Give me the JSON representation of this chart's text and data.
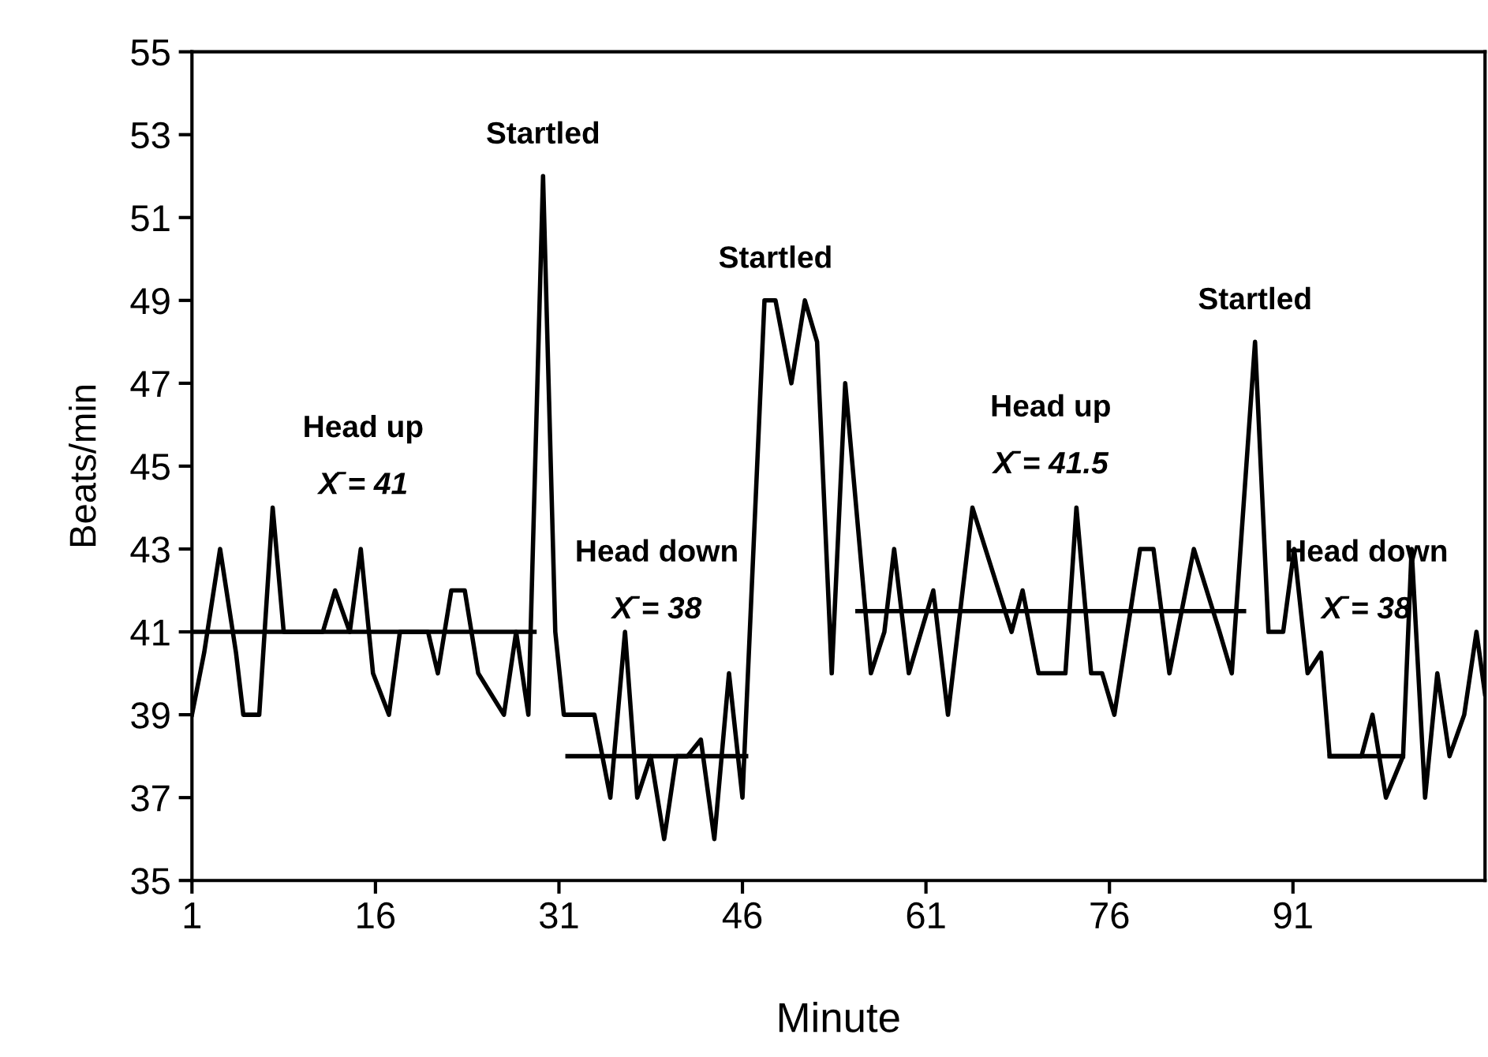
{
  "chart_data": {
    "type": "line",
    "xlabel": "Minute",
    "ylabel": "Beats/min",
    "xlim": [
      1,
      106.7
    ],
    "xticks": [
      1,
      16,
      31,
      46,
      61,
      76,
      91
    ],
    "ylim": [
      35,
      55
    ],
    "yticks": [
      35,
      37,
      39,
      41,
      43,
      45,
      47,
      49,
      51,
      53,
      55
    ],
    "grid": false,
    "marker": "none",
    "line_style": "solid",
    "series": [
      {
        "color": "#000000",
        "x": [
          1,
          2,
          3.3,
          4.6,
          5.2,
          6.5,
          7.6,
          8.5,
          11.7,
          12.7,
          13.9,
          14.8,
          15.8,
          17.1,
          18,
          20.3,
          21.1,
          22.2,
          23.3,
          24.4,
          26.5,
          27.5,
          28.5,
          29.7,
          30.7,
          31.4,
          33.9,
          35.2,
          36.4,
          37.4,
          38.5,
          39.6,
          40.6,
          41.5,
          42.6,
          43.7,
          44.9,
          46,
          47.8,
          48.7,
          50,
          51.1,
          52.1,
          53.3,
          54.4,
          56.5,
          57.6,
          58.4,
          59.6,
          61.6,
          62.8,
          64.8,
          68,
          68.9,
          70.2,
          72.4,
          73.3,
          74.5,
          75.4,
          76.4,
          78.5,
          79.6,
          80.9,
          82.9,
          85,
          86,
          87.9,
          89,
          90.2,
          91.1,
          92.2,
          93.3,
          94,
          96.6,
          97.5,
          98.6,
          100,
          100.7,
          101.8,
          102.8,
          103.8,
          105,
          106,
          106.7
        ],
        "values": [
          39,
          40.5,
          43,
          40.5,
          39,
          39,
          44,
          41,
          41,
          42,
          41,
          43,
          40,
          39,
          41,
          41,
          40,
          42,
          42,
          40,
          39,
          41,
          39,
          52,
          41,
          39,
          39,
          37,
          41,
          37,
          38,
          36,
          38,
          38,
          38.4,
          36,
          40,
          37,
          49,
          49,
          47,
          49,
          48,
          40,
          47,
          40,
          41,
          43,
          40,
          42,
          39,
          44,
          41,
          42,
          40,
          40,
          44,
          40,
          40,
          39,
          43,
          43,
          40,
          43,
          41,
          40,
          48,
          41,
          41,
          43,
          40,
          40.5,
          38,
          38,
          39,
          37,
          38,
          43,
          37,
          40,
          38,
          39,
          41,
          39.5
        ]
      },
      {
        "color": "#000000",
        "x": [
          1,
          29
        ],
        "values": [
          41,
          41
        ]
      },
      {
        "color": "#000000",
        "x": [
          31.7,
          46.3
        ],
        "values": [
          38,
          38
        ]
      },
      {
        "color": "#000000",
        "x": [
          55.4,
          87
        ],
        "values": [
          41.5,
          41.5
        ]
      },
      {
        "color": "#000000",
        "x": [
          94,
          100
        ],
        "values": [
          38,
          38
        ]
      }
    ],
    "annotations": [
      {
        "text": "Startled",
        "x": 29.7,
        "y": 52
      },
      "Head up",
      "X̄ = 41",
      "Head down",
      "X̄ = 38",
      {
        "text": "Startled",
        "x": 48.7,
        "y": 49
      },
      "Head up",
      "X̄ = 41.5",
      {
        "text": "Startled",
        "x": 87.9,
        "y": 48
      },
      "Head down",
      "X̄ = 38"
    ]
  }
}
